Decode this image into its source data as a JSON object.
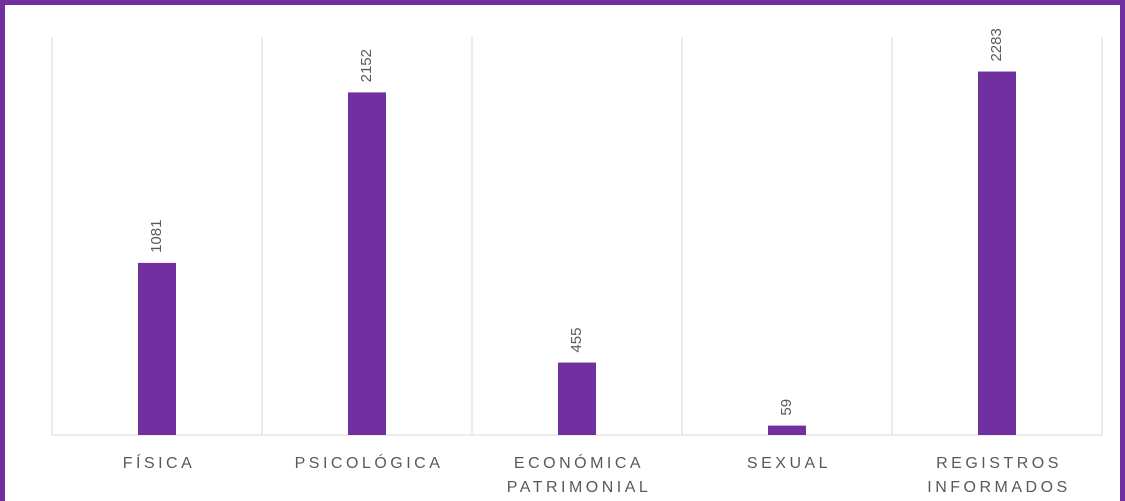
{
  "chart_data": {
    "type": "bar",
    "categories": [
      "FÍSICA",
      "PSICOLÓGICA",
      "ECONÓMICA PATRIMONIAL",
      "SEXUAL",
      "REGISTROS INFORMADOS"
    ],
    "values": [
      1081,
      2152,
      455,
      59,
      2283
    ],
    "color": "#7030a0",
    "ylim": [
      0,
      2500
    ],
    "grid": true
  }
}
